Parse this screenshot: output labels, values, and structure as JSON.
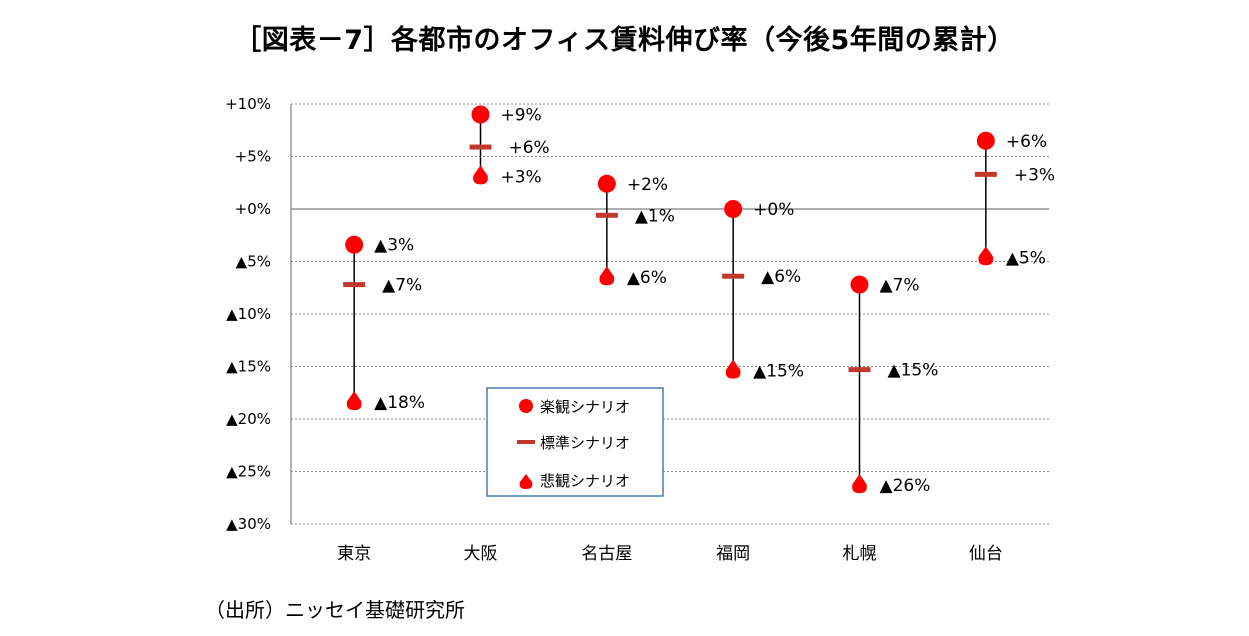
{
  "title": "［図表－7］各都市のオフィス賃料伸び率（今後5年間の累計）",
  "source": "（出所）ニッセイ基礎研究所",
  "colors": {
    "marker": "#ff0000",
    "standard": "#c0392b",
    "legend_border": "#4a7ab0"
  },
  "legend": {
    "optimistic": "楽観シナリオ",
    "standard": "標準シナリオ",
    "pessimistic": "悲観シナリオ"
  },
  "chart_data": {
    "type": "scatter",
    "categories": [
      "東京",
      "大阪",
      "名古屋",
      "福岡",
      "札幌",
      "仙台"
    ],
    "ylim": [
      -30,
      10
    ],
    "yticks": [
      10,
      5,
      0,
      -5,
      -10,
      -15,
      -20,
      -25,
      -30
    ],
    "ytick_labels": [
      "+10%",
      "+5%",
      "+0%",
      "▲5%",
      "▲10%",
      "▲15%",
      "▲20%",
      "▲25%",
      "▲30%"
    ],
    "grid": true,
    "legend_position": "bottom-center",
    "series": [
      {
        "name": "楽観シナリオ",
        "marker": "circle",
        "values": [
          -3.4,
          9.0,
          2.4,
          0.0,
          -7.2,
          6.5
        ],
        "labels": [
          "▲3%",
          "+9%",
          "+2%",
          "+0%",
          "▲7%",
          "+6%"
        ]
      },
      {
        "name": "標準シナリオ",
        "marker": "dash",
        "values": [
          -7.2,
          5.9,
          -0.6,
          -6.4,
          -15.3,
          3.3
        ],
        "labels": [
          "▲7%",
          "+6%",
          "▲1%",
          "▲6%",
          "▲15%",
          "+3%"
        ]
      },
      {
        "name": "悲観シナリオ",
        "marker": "triangle",
        "values": [
          -18.3,
          3.2,
          -6.4,
          -15.3,
          -26.2,
          -4.5
        ],
        "labels": [
          "▲18%",
          "+3%",
          "▲6%",
          "▲15%",
          "▲26%",
          "▲5%"
        ]
      }
    ]
  }
}
